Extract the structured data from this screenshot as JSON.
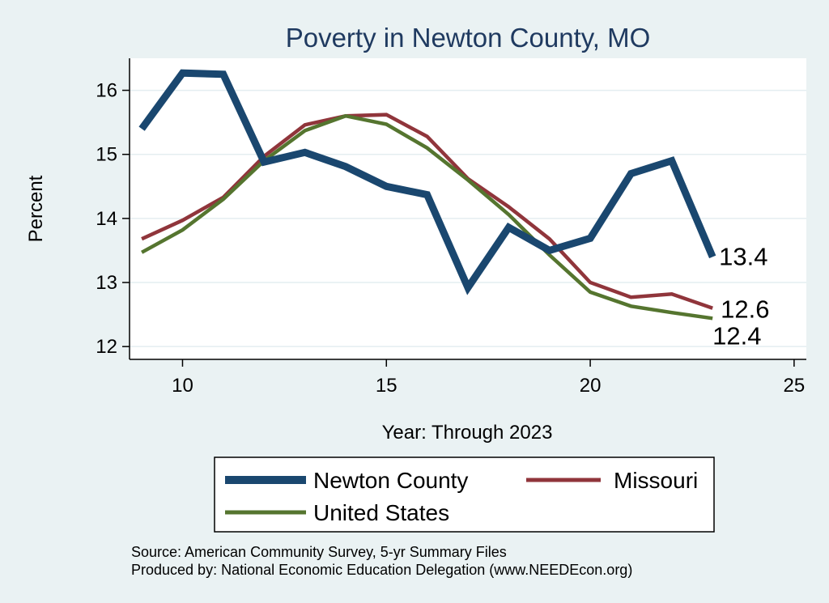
{
  "chart_data": {
    "type": "line",
    "title": "Poverty in Newton County, MO",
    "xlabel": "Year: Through 2023",
    "ylabel": "Percent",
    "xlim": [
      8.7,
      25.3
    ],
    "ylim": [
      11.8,
      16.5
    ],
    "xticks": [
      10,
      15,
      20,
      25
    ],
    "yticks": [
      12,
      13,
      14,
      15,
      16
    ],
    "x": [
      9,
      10,
      11,
      12,
      13,
      14,
      15,
      16,
      17,
      18,
      19,
      20,
      21,
      22,
      23
    ],
    "series": [
      {
        "name": "Newton County",
        "color": "#1a476f",
        "values": [
          15.4,
          16.27,
          16.25,
          14.88,
          15.03,
          14.81,
          14.5,
          14.37,
          12.92,
          13.86,
          13.5,
          13.69,
          14.7,
          14.9,
          13.4
        ],
        "end_label": "13.4"
      },
      {
        "name": "Missouri",
        "color": "#90353b",
        "values": [
          13.68,
          13.97,
          14.33,
          14.97,
          15.46,
          15.6,
          15.62,
          15.28,
          14.62,
          14.18,
          13.68,
          13.0,
          12.77,
          12.82,
          12.6
        ],
        "end_label": "12.6"
      },
      {
        "name": "United States",
        "color": "#55752f",
        "values": [
          13.47,
          13.82,
          14.3,
          14.9,
          15.37,
          15.6,
          15.47,
          15.1,
          14.6,
          14.06,
          13.43,
          12.85,
          12.63,
          12.53,
          12.44
        ],
        "end_label": "12.4"
      }
    ],
    "legend_position": "bottom"
  },
  "source_note": "Source: American Community Survey, 5-yr Summary Files",
  "produced_note": "Produced by: National Economic Education Delegation (www.NEEDEcon.org)"
}
